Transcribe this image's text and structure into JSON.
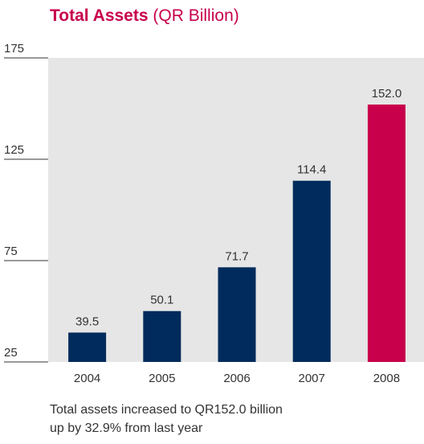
{
  "chart_data": {
    "type": "bar",
    "title": "Total Assets",
    "subtitle": "(QR Billion)",
    "categories": [
      "2004",
      "2005",
      "2006",
      "2007",
      "2008"
    ],
    "values": [
      39.5,
      50.1,
      71.7,
      114.4,
      152.0
    ],
    "value_labels": [
      "39.5",
      "50.1",
      "71.7",
      "114.4",
      "152.0"
    ],
    "colors": [
      "#002b5c",
      "#002b5c",
      "#002b5c",
      "#002b5c",
      "#c8004b"
    ],
    "ylim": [
      25,
      175
    ],
    "yticks": [
      25,
      75,
      125,
      175
    ],
    "annotation": [
      "Total assets increased to QR152.0 billion",
      "up by 32.9% from last year"
    ]
  }
}
